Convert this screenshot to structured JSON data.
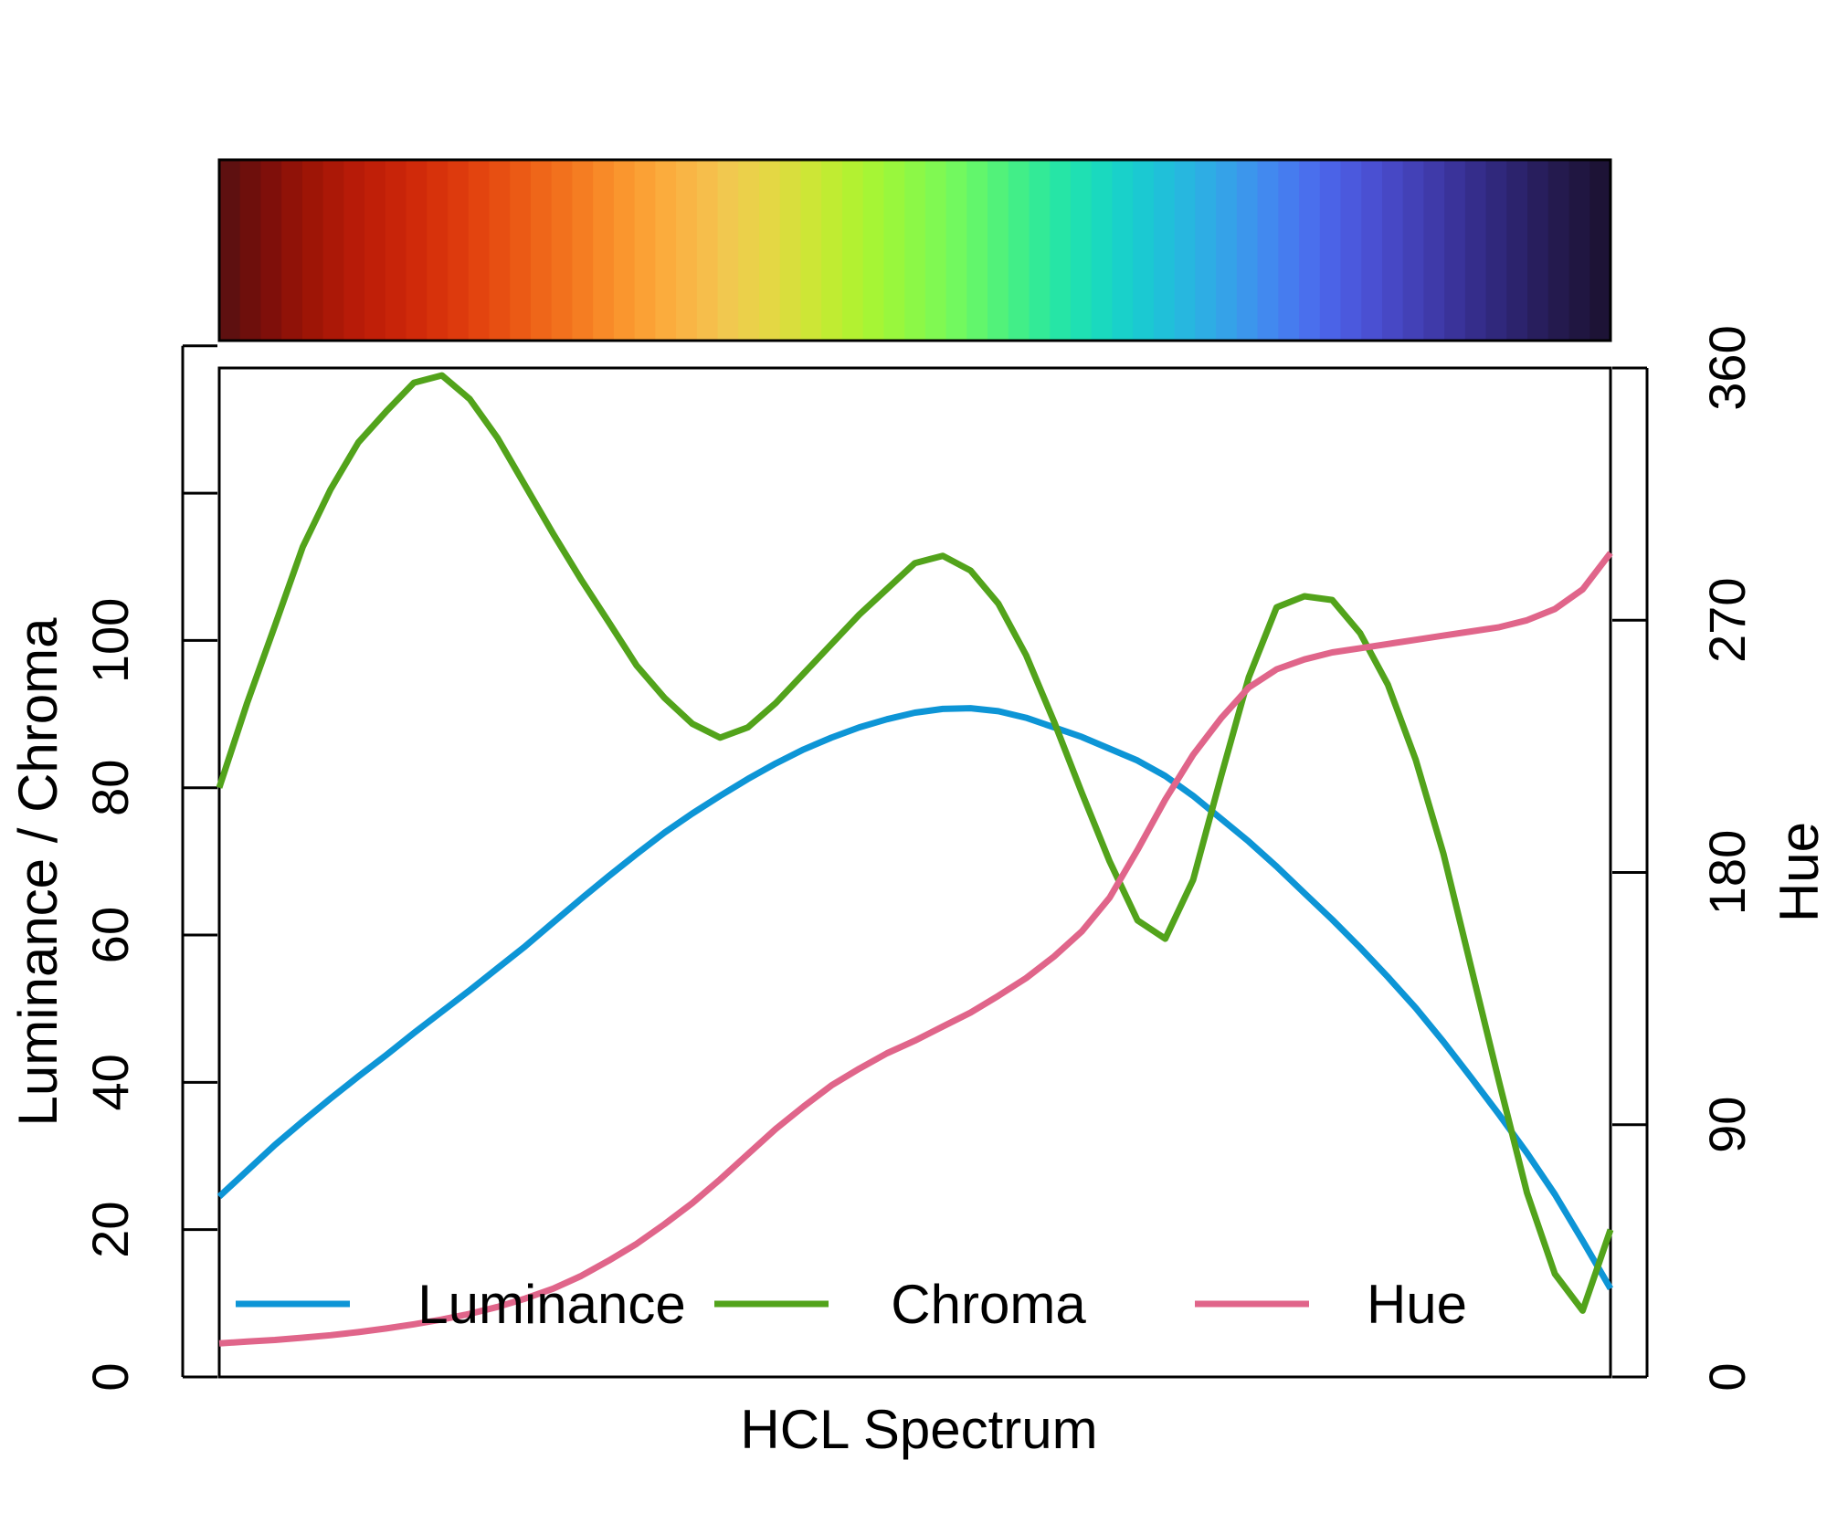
{
  "chart_data": {
    "type": "line",
    "xlabel": "HCL Spectrum",
    "ylabel_left": "Luminance / Chroma",
    "ylabel_right": "Hue",
    "ylim_left": [
      0,
      137
    ],
    "ylim_right": [
      0,
      360
    ],
    "yticks_left": [
      "0",
      "20",
      "40",
      "60",
      "80",
      "100"
    ],
    "yticks_right": [
      "0",
      "90",
      "180",
      "270",
      "360"
    ],
    "grid": false,
    "legend_position": "bottom",
    "colorbar": [
      "#5e1010",
      "#6e0f0c",
      "#7f0f0a",
      "#901208",
      "#9e1506",
      "#ab1807",
      "#b71b08",
      "#c01f08",
      "#c82409",
      "#d02a0a",
      "#d7320b",
      "#dd3a0d",
      "#e3440f",
      "#e74f12",
      "#eb5a15",
      "#ef6619",
      "#f2711d",
      "#f57d22",
      "#f88a28",
      "#fa962e",
      "#fba135",
      "#fbac3d",
      "#f9b545",
      "#f6be4b",
      "#f1c84f",
      "#ebd04a",
      "#e4d744",
      "#d9de3d",
      "#cde636",
      "#c0ec32",
      "#b3f131",
      "#a6f535",
      "#99f73d",
      "#8cf847",
      "#80f952",
      "#72f95f",
      "#62f66c",
      "#52f27a",
      "#42ee88",
      "#33ea97",
      "#26e5a6",
      "#1fe0b3",
      "#1ad9bf",
      "#19d1ca",
      "#1bc9d2",
      "#20c0d9",
      "#27b7df",
      "#2eade4",
      "#35a2e8",
      "#3c96ec",
      "#4289ef",
      "#467cef",
      "#4a6fed",
      "#4b63e7",
      "#4b59dd",
      "#4a50d2",
      "#4748c5",
      "#4341b7",
      "#3f3aa9",
      "#3a339a",
      "#352d8b",
      "#30287c",
      "#2c236d",
      "#281e5d",
      "#241a4e",
      "#201641",
      "#1d1336"
    ],
    "series": [
      {
        "name": "Luminance",
        "color": "#0d95d6",
        "axis": "left",
        "x": [
          0,
          2,
          4,
          6,
          8,
          10,
          12,
          14,
          16,
          18,
          20,
          22,
          24,
          26,
          28,
          30,
          32,
          34,
          36,
          38,
          40,
          42,
          44,
          46,
          48,
          50,
          52,
          54,
          56,
          58,
          60,
          62,
          64,
          66,
          68,
          70,
          72,
          74,
          76,
          78,
          80,
          82,
          84,
          86,
          88,
          90,
          92,
          94,
          96,
          98,
          100
        ],
        "values": [
          24.5,
          28,
          31.5,
          34.7,
          37.8,
          40.8,
          43.7,
          46.7,
          49.6,
          52.5,
          55.5,
          58.5,
          61.7,
          64.9,
          68,
          71,
          73.9,
          76.5,
          78.9,
          81.2,
          83.3,
          85.2,
          86.8,
          88.2,
          89.3,
          90.2,
          90.7,
          90.8,
          90.4,
          89.5,
          88.2,
          86.9,
          85.3,
          83.7,
          81.6,
          78.9,
          75.8,
          72.7,
          69.3,
          65.7,
          62.1,
          58.3,
          54.3,
          50.1,
          45.5,
          40.6,
          35.6,
          30.4,
          24.8,
          18.5,
          12
        ]
      },
      {
        "name": "Chroma",
        "color": "#52a31b",
        "axis": "left",
        "x": [
          0,
          2,
          4,
          6,
          8,
          10,
          12,
          14,
          16,
          18,
          20,
          22,
          24,
          26,
          28,
          30,
          32,
          34,
          36,
          38,
          40,
          42,
          44,
          46,
          48,
          50,
          52,
          54,
          56,
          58,
          60,
          62,
          64,
          66,
          68,
          70,
          72,
          74,
          76,
          78,
          80,
          82,
          84,
          86,
          88,
          90,
          92,
          94,
          96,
          98,
          100
        ],
        "values": [
          80,
          91.5,
          102,
          112.7,
          120.5,
          126.9,
          131.1,
          135,
          136,
          132.8,
          127.5,
          121,
          114.5,
          108.3,
          102.5,
          96.6,
          92.2,
          88.7,
          86.8,
          88.2,
          91.5,
          95.5,
          99.5,
          103.5,
          107,
          110.5,
          111.5,
          109.5,
          105,
          98,
          89,
          79.3,
          70,
          62,
          59.5,
          67.5,
          81.5,
          95,
          104.5,
          106,
          105.5,
          101,
          94,
          83.8,
          71,
          55.5,
          40,
          25,
          14,
          9,
          20
        ]
      },
      {
        "name": "Hue",
        "color": "#e0658a",
        "axis": "right",
        "x": [
          0,
          2,
          4,
          6,
          8,
          10,
          12,
          14,
          16,
          18,
          20,
          22,
          24,
          26,
          28,
          30,
          32,
          34,
          36,
          38,
          40,
          42,
          44,
          46,
          48,
          50,
          52,
          54,
          56,
          58,
          60,
          62,
          64,
          66,
          68,
          70,
          72,
          74,
          76,
          78,
          80,
          82,
          84,
          86,
          88,
          90,
          92,
          94,
          96,
          98,
          100
        ],
        "values": [
          12,
          12.6,
          13.2,
          14,
          14.9,
          16,
          17.3,
          18.8,
          20.5,
          22.5,
          25,
          28,
          31.5,
          36,
          41.5,
          47.5,
          54.5,
          62,
          70.5,
          79.5,
          88.5,
          96.5,
          104,
          110,
          115.5,
          120,
          125,
          130,
          136,
          142.3,
          150,
          159,
          171,
          188,
          206,
          222,
          235,
          246,
          252.5,
          256,
          258.5,
          260,
          261.5,
          263,
          264.5,
          266,
          267.5,
          270,
          274,
          281,
          294
        ]
      }
    ]
  }
}
